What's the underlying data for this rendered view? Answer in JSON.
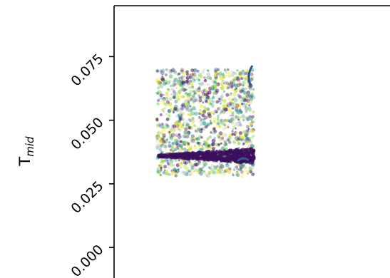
{
  "chart_data": {
    "type": "scatter",
    "title": "",
    "ylabel": {
      "main": "T",
      "sub": "mid"
    },
    "y_ticks": [
      {
        "value": 0.0,
        "label": "0.000"
      },
      {
        "value": 0.025,
        "label": "0.025"
      },
      {
        "value": 0.05,
        "label": "0.050"
      },
      {
        "value": 0.075,
        "label": "0.075"
      }
    ],
    "ylim": [
      -0.012,
      0.095
    ],
    "grid": false,
    "cloud": {
      "y_range": [
        0.028,
        0.07
      ],
      "dense_band_y": 0.036
    },
    "colors": {
      "cloud": [
        "#440154",
        "#3b528b",
        "#21918c",
        "#5ec962",
        "#b5de2b",
        "#fde725",
        "#c8c8d8"
      ],
      "band": "#3a0f5c",
      "arc": "#31568a"
    }
  }
}
